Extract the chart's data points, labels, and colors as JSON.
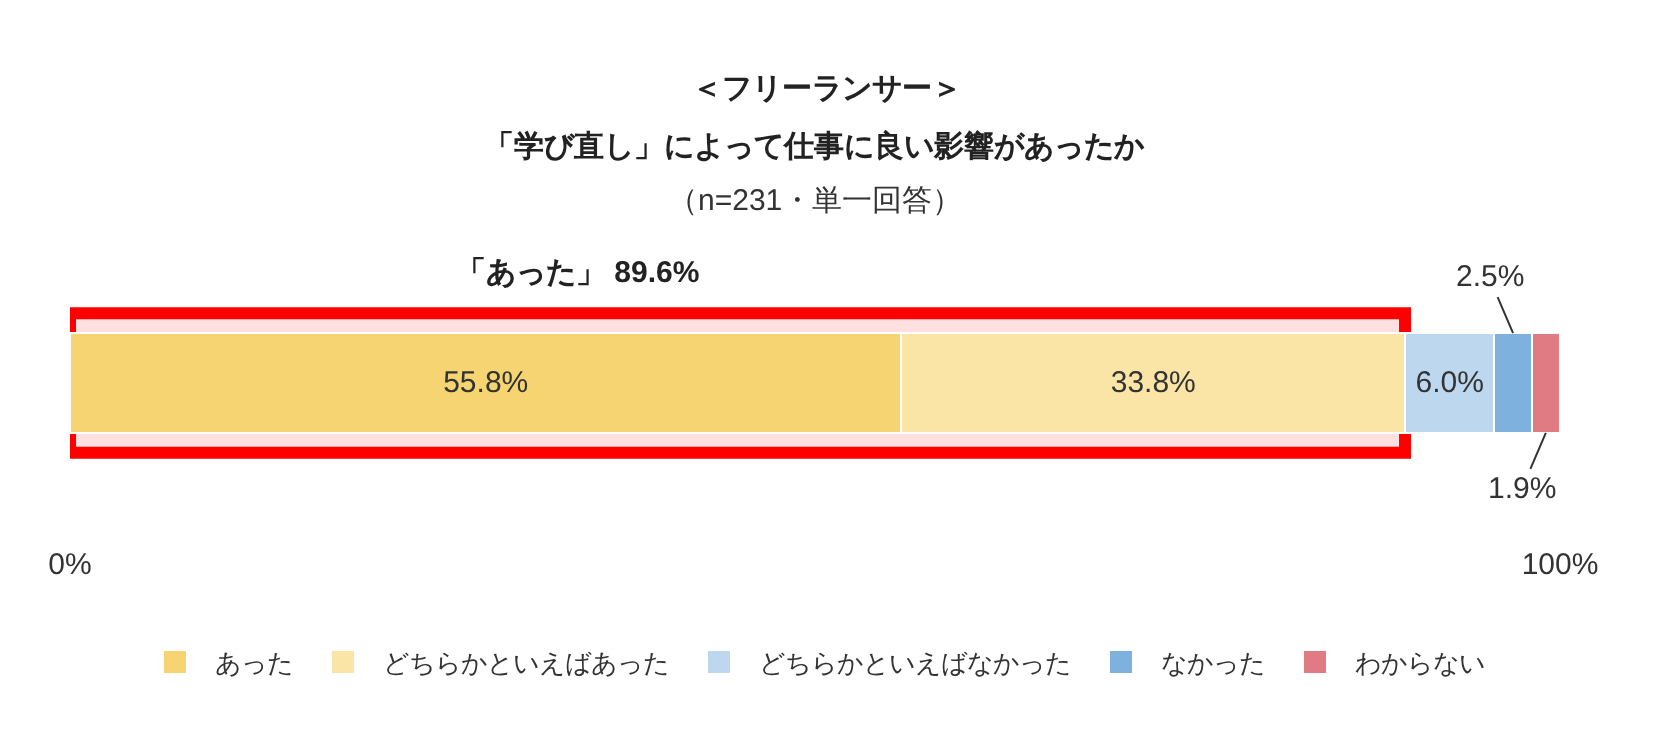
{
  "chart_data": {
    "type": "bar",
    "orientation": "horizontal",
    "stacked": true,
    "title": "＜フリーランサー＞",
    "subtitle": "「学び直し」によって仕事に良い影響があったか",
    "annotations": [
      "（n=231・単一回答）"
    ],
    "categories": [
      null
    ],
    "series": [
      {
        "name": "あった",
        "color": "#f5d471",
        "values": [
          55.8
        ],
        "value_labels": [
          "55.8%"
        ]
      },
      {
        "name": "どちらかといえばあった",
        "color": "#fae5a6",
        "values": [
          33.8
        ],
        "value_labels": [
          "33.8%"
        ]
      },
      {
        "name": "どちらかといえばなかった",
        "color": "#bdd7ee",
        "values": [
          6.0
        ],
        "value_labels": [
          "6.0%"
        ]
      },
      {
        "name": "なかった",
        "color": "#7fb1de",
        "values": [
          2.5
        ],
        "value_labels": [
          "2.5%"
        ]
      },
      {
        "name": "わからない",
        "color": "#e07b84",
        "values": [
          1.9
        ],
        "value_labels": [
          "1.9%"
        ]
      }
    ],
    "bands": [
      {
        "axis": "x",
        "from": 0,
        "to": 89.6,
        "label": "「あった」 89.6%",
        "color": "#ff0000"
      }
    ],
    "xlim": [
      0,
      100
    ],
    "xticks": [
      {
        "value": 0,
        "label": "0%"
      },
      {
        "value": 100,
        "label": "100%"
      }
    ],
    "legend": "bottom"
  }
}
